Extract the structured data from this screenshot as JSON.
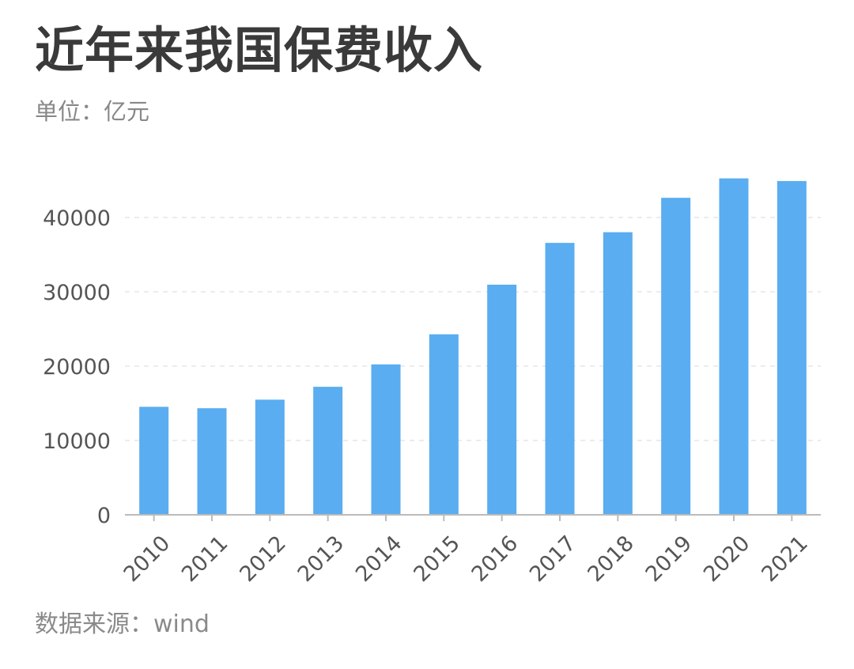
{
  "header": {
    "title": "近年来我国保费收入",
    "unit": "单位：亿元"
  },
  "footer": {
    "source": "数据来源：wind"
  },
  "colors": {
    "bar": "#5aadf0",
    "grid": "#e6e6e6",
    "axis": "#bbbbbb"
  },
  "chart_data": {
    "type": "bar",
    "title": "近年来我国保费收入",
    "subtitle": "单位：亿元",
    "xlabel": "",
    "ylabel": "",
    "categories": [
      "2010",
      "2011",
      "2012",
      "2013",
      "2014",
      "2015",
      "2016",
      "2017",
      "2018",
      "2019",
      "2020",
      "2021"
    ],
    "values": [
      14528,
      14339,
      15488,
      17222,
      20235,
      24283,
      30959,
      36581,
      38017,
      42645,
      45257,
      44900
    ],
    "ylim": [
      0,
      50000
    ],
    "yticks": [
      "0",
      "10000",
      "20000",
      "30000",
      "40000"
    ],
    "grid": true,
    "legend": "none"
  }
}
